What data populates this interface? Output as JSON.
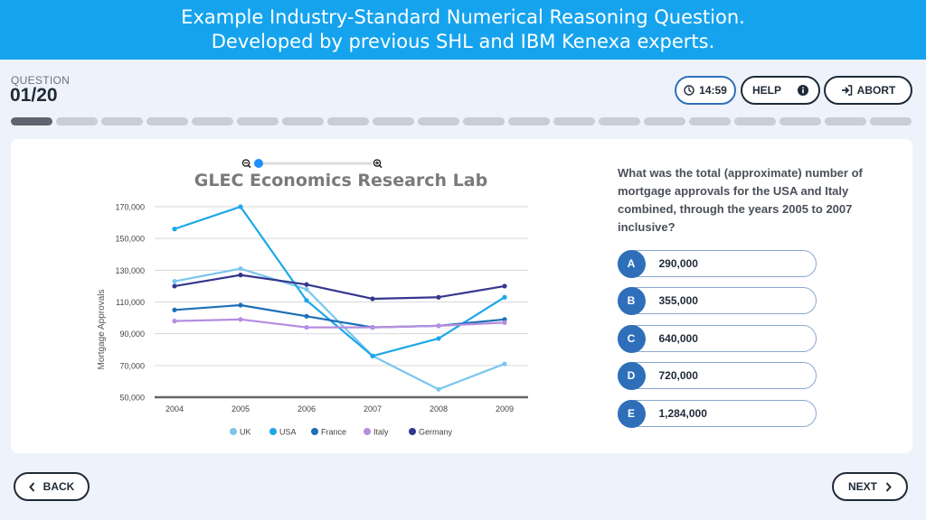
{
  "banner": {
    "line1": "Example Industry-Standard Numerical Reasoning Question.",
    "line2": "Developed by previous SHL and IBM Kenexa experts."
  },
  "header": {
    "question_label": "QUESTION",
    "question_number": "01/20",
    "timer": "14:59",
    "help_label": "HELP",
    "abort_label": "ABORT"
  },
  "progress": {
    "total": 20,
    "current": 1
  },
  "question": {
    "text": "What was the total (approximate) number of mortgage approvals for the USA and Italy combined, through the years 2005 to 2007 inclusive?",
    "options": [
      {
        "letter": "A",
        "value": "290,000"
      },
      {
        "letter": "B",
        "value": "355,000"
      },
      {
        "letter": "C",
        "value": "640,000"
      },
      {
        "letter": "D",
        "value": "720,000"
      },
      {
        "letter": "E",
        "value": "1,284,000"
      }
    ]
  },
  "nav": {
    "back_label": "BACK",
    "next_label": "NEXT"
  },
  "colors": {
    "accent": "#2f6fba",
    "banner": "#15a3ee"
  },
  "chart_data": {
    "type": "line",
    "title": "GLEC Economics Research Lab",
    "xlabel": "",
    "ylabel": "Mortgage Approvals",
    "x": [
      "2004",
      "2005",
      "2006",
      "2007",
      "2008",
      "2009"
    ],
    "ylim": [
      50000,
      170000
    ],
    "yticks": [
      50000,
      70000,
      90000,
      110000,
      130000,
      150000,
      170000
    ],
    "ytick_labels": [
      "50,000",
      "70,000",
      "90,000",
      "110,000",
      "130,000",
      "150,000",
      "170,000"
    ],
    "grid": true,
    "legend": "bottom",
    "series": [
      {
        "name": "UK",
        "color": "#7cc6ee",
        "values": [
          123000,
          131000,
          118000,
          76000,
          55000,
          71000
        ]
      },
      {
        "name": "USA",
        "color": "#1ea7e8",
        "values": [
          156000,
          170000,
          111000,
          76000,
          87000,
          113000
        ]
      },
      {
        "name": "France",
        "color": "#1d6fb8",
        "values": [
          105000,
          108000,
          101000,
          94000,
          95000,
          99000
        ]
      },
      {
        "name": "Italy",
        "color": "#b58ee0",
        "values": [
          98000,
          99000,
          94000,
          94000,
          95000,
          97000
        ]
      },
      {
        "name": "Germany",
        "color": "#34378f",
        "values": [
          120000,
          127000,
          121000,
          112000,
          113000,
          120000
        ]
      }
    ]
  }
}
